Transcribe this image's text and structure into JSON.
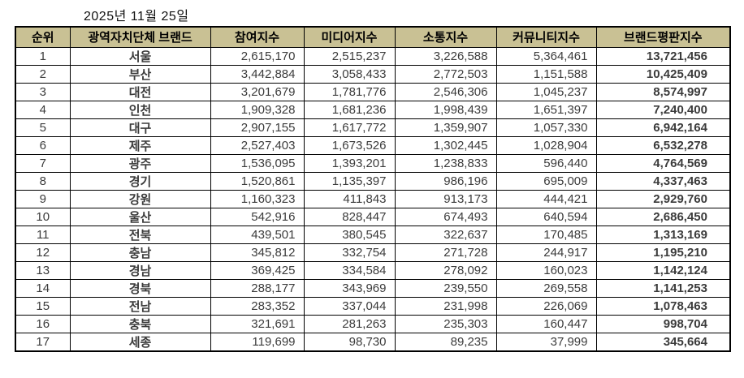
{
  "date": "2025년 11월 25일",
  "colors": {
    "header_bg": "#C9C194",
    "brand_value_text": "#D32B2B",
    "border": "#000000",
    "body_text": "#3B3B3B"
  },
  "table": {
    "headers": [
      "순위",
      "광역자치단체 브랜드",
      "참여지수",
      "미디어지수",
      "소통지수",
      "커뮤니티지수",
      "브랜드평판지수"
    ],
    "rows": [
      {
        "rank": "1",
        "name": "서울",
        "participation": "2,615,170",
        "media": "2,515,237",
        "communication": "3,226,588",
        "community": "5,364,461",
        "brand": "13,721,456"
      },
      {
        "rank": "2",
        "name": "부산",
        "participation": "3,442,884",
        "media": "3,058,433",
        "communication": "2,772,503",
        "community": "1,151,588",
        "brand": "10,425,409"
      },
      {
        "rank": "3",
        "name": "대전",
        "participation": "3,201,679",
        "media": "1,781,776",
        "communication": "2,546,306",
        "community": "1,045,237",
        "brand": "8,574,997"
      },
      {
        "rank": "4",
        "name": "인천",
        "participation": "1,909,328",
        "media": "1,681,236",
        "communication": "1,998,439",
        "community": "1,651,397",
        "brand": "7,240,400"
      },
      {
        "rank": "5",
        "name": "대구",
        "participation": "2,907,155",
        "media": "1,617,772",
        "communication": "1,359,907",
        "community": "1,057,330",
        "brand": "6,942,164"
      },
      {
        "rank": "6",
        "name": "제주",
        "participation": "2,527,403",
        "media": "1,673,526",
        "communication": "1,302,445",
        "community": "1,028,904",
        "brand": "6,532,278"
      },
      {
        "rank": "7",
        "name": "광주",
        "participation": "1,536,095",
        "media": "1,393,201",
        "communication": "1,238,833",
        "community": "596,440",
        "brand": "4,764,569"
      },
      {
        "rank": "8",
        "name": "경기",
        "participation": "1,520,861",
        "media": "1,135,397",
        "communication": "986,196",
        "community": "695,009",
        "brand": "4,337,463"
      },
      {
        "rank": "9",
        "name": "강원",
        "participation": "1,160,323",
        "media": "411,843",
        "communication": "913,173",
        "community": "444,421",
        "brand": "2,929,760"
      },
      {
        "rank": "10",
        "name": "울산",
        "participation": "542,916",
        "media": "828,447",
        "communication": "674,493",
        "community": "640,594",
        "brand": "2,686,450"
      },
      {
        "rank": "11",
        "name": "전북",
        "participation": "439,501",
        "media": "380,545",
        "communication": "322,637",
        "community": "170,485",
        "brand": "1,313,169"
      },
      {
        "rank": "12",
        "name": "충남",
        "participation": "345,812",
        "media": "332,754",
        "communication": "271,728",
        "community": "244,917",
        "brand": "1,195,210"
      },
      {
        "rank": "13",
        "name": "경남",
        "participation": "369,425",
        "media": "334,584",
        "communication": "278,092",
        "community": "160,023",
        "brand": "1,142,124"
      },
      {
        "rank": "14",
        "name": "경북",
        "participation": "288,177",
        "media": "343,969",
        "communication": "239,550",
        "community": "269,558",
        "brand": "1,141,253"
      },
      {
        "rank": "15",
        "name": "전남",
        "participation": "283,352",
        "media": "337,044",
        "communication": "231,998",
        "community": "226,069",
        "brand": "1,078,463"
      },
      {
        "rank": "16",
        "name": "충북",
        "participation": "321,691",
        "media": "281,263",
        "communication": "235,303",
        "community": "160,447",
        "brand": "998,704"
      },
      {
        "rank": "17",
        "name": "세종",
        "participation": "119,699",
        "media": "98,730",
        "communication": "89,235",
        "community": "37,999",
        "brand": "345,664"
      }
    ]
  },
  "chart_data": {
    "type": "table",
    "title": "2025년 11월 25일 광역자치단체 브랜드평판지수",
    "columns": [
      "순위",
      "광역자치단체 브랜드",
      "참여지수",
      "미디어지수",
      "소통지수",
      "커뮤니티지수",
      "브랜드평판지수"
    ],
    "rows": [
      [
        1,
        "서울",
        2615170,
        2515237,
        3226588,
        5364461,
        13721456
      ],
      [
        2,
        "부산",
        3442884,
        3058433,
        2772503,
        1151588,
        10425409
      ],
      [
        3,
        "대전",
        3201679,
        1781776,
        2546306,
        1045237,
        8574997
      ],
      [
        4,
        "인천",
        1909328,
        1681236,
        1998439,
        1651397,
        7240400
      ],
      [
        5,
        "대구",
        2907155,
        1617772,
        1359907,
        1057330,
        6942164
      ],
      [
        6,
        "제주",
        2527403,
        1673526,
        1302445,
        1028904,
        6532278
      ],
      [
        7,
        "광주",
        1536095,
        1393201,
        1238833,
        596440,
        4764569
      ],
      [
        8,
        "경기",
        1520861,
        1135397,
        986196,
        695009,
        4337463
      ],
      [
        9,
        "강원",
        1160323,
        411843,
        913173,
        444421,
        2929760
      ],
      [
        10,
        "울산",
        542916,
        828447,
        674493,
        640594,
        2686450
      ],
      [
        11,
        "전북",
        439501,
        380545,
        322637,
        170485,
        1313169
      ],
      [
        12,
        "충남",
        345812,
        332754,
        271728,
        244917,
        1195210
      ],
      [
        13,
        "경남",
        369425,
        334584,
        278092,
        160023,
        1142124
      ],
      [
        14,
        "경북",
        288177,
        343969,
        239550,
        269558,
        1141253
      ],
      [
        15,
        "전남",
        283352,
        337044,
        231998,
        226069,
        1078463
      ],
      [
        16,
        "충북",
        321691,
        281263,
        235303,
        160447,
        998704
      ],
      [
        17,
        "세종",
        119699,
        98730,
        89235,
        37999,
        345664
      ]
    ]
  }
}
